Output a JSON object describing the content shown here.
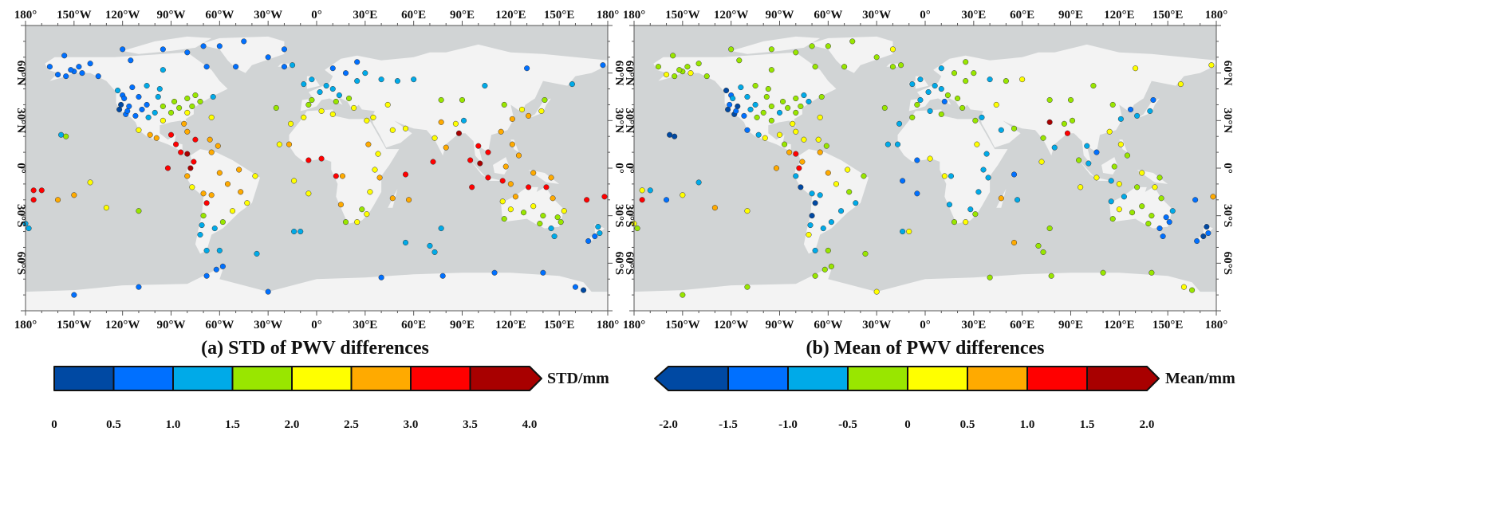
{
  "colors": {
    "ocean": "#d1d4d5",
    "land": "#f3f3f3",
    "bins": [
      "#0049a3",
      "#0070ff",
      "#00aae8",
      "#99e600",
      "#ffff00",
      "#ffaa00",
      "#ff0000",
      "#a80000"
    ]
  },
  "axes": {
    "lon_labels": [
      "180°",
      "150°W",
      "120°W",
      "90°W",
      "60°W",
      "30°W",
      "0°",
      "30°E",
      "60°E",
      "90°E",
      "120°E",
      "150°E",
      "180°"
    ],
    "lat_labels": [
      "60°N",
      "30°N",
      "0°",
      "30°S",
      "60°S"
    ]
  },
  "panels": [
    {
      "title": "(a) STD of PWV differences",
      "variable": "std",
      "colorbar": {
        "ticks": [
          "0",
          "0.5",
          "1.0",
          "1.5",
          "2.0",
          "2.5",
          "3.0",
          "3.5",
          "4.0"
        ],
        "range": [
          0,
          4
        ],
        "unit": "STD/mm",
        "extend": "max"
      }
    },
    {
      "title": "(b) Mean of PWV differences",
      "variable": "mean",
      "colorbar": {
        "ticks": [
          "-2.0",
          "-1.5",
          "-1.0",
          "-0.5",
          "0",
          "0.5",
          "1.0",
          "1.5",
          "2.0"
        ],
        "range": [
          -2,
          2
        ],
        "unit": "Mean/mm",
        "extend": "both"
      }
    }
  ],
  "stations_fields": [
    "lon",
    "lat",
    "std",
    "mean"
  ],
  "stations": [
    [
      -150,
      61,
      0.7,
      -0.3
    ],
    [
      -147,
      64,
      0.6,
      -0.4
    ],
    [
      -135,
      58,
      0.8,
      -0.2
    ],
    [
      -160,
      59,
      0.8,
      0.2
    ],
    [
      -165,
      64,
      0.6,
      -0.3
    ],
    [
      -156,
      71,
      0.6,
      -0.2
    ],
    [
      -140,
      66,
      0.7,
      -0.4
    ],
    [
      -145,
      60,
      0.9,
      0.1
    ],
    [
      -155,
      58,
      0.7,
      -0.5
    ],
    [
      -152,
      62,
      0.6,
      -0.2
    ],
    [
      -123,
      49,
      1.0,
      -1.6
    ],
    [
      -114,
      51,
      0.9,
      -0.6
    ],
    [
      -105,
      52,
      1.2,
      -0.4
    ],
    [
      -97,
      50,
      1.3,
      -0.3
    ],
    [
      -80,
      44,
      1.6,
      -0.3
    ],
    [
      -75,
      46,
      1.5,
      -0.7
    ],
    [
      -64,
      45,
      1.4,
      -0.5
    ],
    [
      -95,
      62,
      1.0,
      -0.2
    ],
    [
      -68,
      64,
      0.7,
      -0.1
    ],
    [
      -80,
      73,
      0.6,
      -0.4
    ],
    [
      -95,
      75,
      0.6,
      -0.3
    ],
    [
      -115,
      68,
      0.7,
      -0.2
    ],
    [
      -120,
      75,
      0.6,
      -0.3
    ],
    [
      -122,
      37,
      0.4,
      -1.8
    ],
    [
      -118,
      34,
      0.5,
      -1.7
    ],
    [
      -112,
      33,
      0.8,
      -1.2
    ],
    [
      -105,
      40,
      0.9,
      -0.6
    ],
    [
      -100,
      35,
      1.2,
      -0.4
    ],
    [
      -95,
      30,
      2.3,
      -0.3
    ],
    [
      -90,
      35,
      1.8,
      -0.6
    ],
    [
      -85,
      38,
      1.7,
      -0.4
    ],
    [
      -80,
      35,
      2.0,
      -0.4
    ],
    [
      -82,
      28,
      2.6,
      0.3
    ],
    [
      -77,
      39,
      1.9,
      -0.5
    ],
    [
      -72,
      42,
      1.6,
      -0.6
    ],
    [
      -120,
      46,
      0.6,
      -1.3
    ],
    [
      -110,
      45,
      0.7,
      -0.7
    ],
    [
      -98,
      45,
      1.3,
      -0.4
    ],
    [
      -88,
      42,
      1.6,
      -0.3
    ],
    [
      -95,
      39,
      1.6,
      -0.2
    ],
    [
      -104,
      32,
      1.1,
      -0.5
    ],
    [
      -116,
      39,
      0.5,
      -1.6
    ],
    [
      -121,
      40,
      0.4,
      -1.2
    ],
    [
      -119,
      44,
      0.6,
      -0.9
    ],
    [
      -117,
      36,
      0.5,
      -1.4
    ],
    [
      -108,
      37,
      0.8,
      -0.6
    ],
    [
      -99,
      19,
      2.7,
      0.2
    ],
    [
      -103,
      21,
      2.8,
      -0.8
    ],
    [
      -90,
      21,
      3.2,
      0.4
    ],
    [
      -87,
      15,
      3.3,
      -0.4
    ],
    [
      -84,
      10,
      3.4,
      0.7
    ],
    [
      -80,
      9,
      3.6,
      1.2
    ],
    [
      -75,
      18,
      3.1,
      0.3
    ],
    [
      -66,
      18,
      2.9,
      0.1
    ],
    [
      -61,
      14,
      2.6,
      -0.4
    ],
    [
      -110,
      24,
      2.3,
      -1.1
    ],
    [
      -80,
      23,
      2.8,
      0.2
    ],
    [
      -155,
      20,
      1.7,
      -1.8
    ],
    [
      -158,
      21,
      1.3,
      -1.9
    ],
    [
      -175,
      -14,
      3.2,
      0.1
    ],
    [
      -170,
      -14,
      3.4,
      -0.6
    ],
    [
      -150,
      -17,
      2.6,
      0.3
    ],
    [
      -140,
      -9,
      2.3,
      -0.9
    ],
    [
      -160,
      -20,
      2.7,
      -1.2
    ],
    [
      -175,
      -20,
      3.2,
      1.2
    ],
    [
      -180,
      -35,
      1.2,
      0.4
    ],
    [
      -130,
      -25,
      2.1,
      0.7
    ],
    [
      -110,
      -27,
      1.9,
      0.2
    ],
    [
      -92,
      0,
      3.2,
      0.7
    ],
    [
      -76,
      4,
      3.1,
      0.6
    ],
    [
      -78,
      0,
      3.5,
      1.2
    ],
    [
      -80,
      -5,
      2.6,
      -1.0
    ],
    [
      -77,
      -12,
      2.2,
      -1.6
    ],
    [
      -70,
      -16,
      2.8,
      -0.9
    ],
    [
      -68,
      -22,
      3.2,
      -1.7
    ],
    [
      -70,
      -30,
      1.5,
      -1.6
    ],
    [
      -71,
      -36,
      1.3,
      -1.0
    ],
    [
      -72,
      -42,
      1.1,
      0.2
    ],
    [
      -68,
      -52,
      1.1,
      -1.0
    ],
    [
      -60,
      -3,
      2.6,
      0.6
    ],
    [
      -48,
      -1,
      2.7,
      0.3
    ],
    [
      -38,
      -5,
      2.4,
      -0.4
    ],
    [
      -47,
      -15,
      2.6,
      -0.3
    ],
    [
      -43,
      -22,
      2.2,
      -0.6
    ],
    [
      -52,
      -27,
      2.0,
      -0.7
    ],
    [
      -58,
      -34,
      1.7,
      -0.6
    ],
    [
      -63,
      -38,
      1.3,
      -0.6
    ],
    [
      -55,
      -10,
      2.7,
      0.4
    ],
    [
      -65,
      -17,
      2.5,
      -0.6
    ],
    [
      -65,
      10,
      2.9,
      0.8
    ],
    [
      -58,
      -62,
      0.7,
      -0.3
    ],
    [
      -62,
      -64,
      0.6,
      -0.4
    ],
    [
      -68,
      -68,
      0.5,
      -0.3
    ],
    [
      -150,
      -80,
      0.5,
      -0.4
    ],
    [
      -110,
      -75,
      0.6,
      -0.3
    ],
    [
      -30,
      -78,
      0.5,
      0.3
    ],
    [
      40,
      -69,
      0.7,
      -0.2
    ],
    [
      78,
      -68,
      0.6,
      -0.2
    ],
    [
      110,
      -66,
      0.7,
      -0.4
    ],
    [
      140,
      -66,
      0.5,
      -0.3
    ],
    [
      165,
      -77,
      0.4,
      -0.3
    ],
    [
      160,
      -75,
      0.5,
      0.2
    ],
    [
      -50,
      64,
      0.6,
      -0.4
    ],
    [
      -30,
      70,
      0.7,
      -0.1
    ],
    [
      -20,
      75,
      0.6,
      0.1
    ],
    [
      -45,
      80,
      0.6,
      -0.2
    ],
    [
      -60,
      77,
      0.7,
      -0.3
    ],
    [
      -70,
      77,
      0.5,
      -0.2
    ],
    [
      -20,
      64,
      0.9,
      -0.3
    ],
    [
      -15,
      65,
      1.0,
      -0.4
    ],
    [
      -5,
      40,
      1.8,
      -0.3
    ],
    [
      -3,
      43,
      1.6,
      -0.6
    ],
    [
      2,
      48,
      1.3,
      -0.7
    ],
    [
      6,
      52,
      1.2,
      -0.8
    ],
    [
      10,
      50,
      1.1,
      -0.6
    ],
    [
      14,
      46,
      1.3,
      -0.3
    ],
    [
      12,
      42,
      1.7,
      -1.1
    ],
    [
      20,
      44,
      1.5,
      -0.3
    ],
    [
      25,
      55,
      1.0,
      -0.4
    ],
    [
      18,
      60,
      0.9,
      -0.5
    ],
    [
      10,
      63,
      0.8,
      -0.6
    ],
    [
      25,
      67,
      0.7,
      -0.3
    ],
    [
      30,
      60,
      1.0,
      -0.5
    ],
    [
      40,
      56,
      1.2,
      -0.6
    ],
    [
      -8,
      53,
      1.4,
      -0.7
    ],
    [
      -3,
      56,
      1.2,
      -0.6
    ],
    [
      23,
      38,
      2.0,
      -0.1
    ],
    [
      35,
      32,
      2.1,
      -1.0
    ],
    [
      44,
      40,
      2.0,
      0.3
    ],
    [
      50,
      55,
      1.1,
      -0.3
    ],
    [
      60,
      56,
      1.2,
      0.4
    ],
    [
      77,
      43,
      1.6,
      -0.5
    ],
    [
      90,
      43,
      1.5,
      -0.3
    ],
    [
      104,
      52,
      1.2,
      -0.4
    ],
    [
      116,
      40,
      1.8,
      -0.5
    ],
    [
      121,
      31,
      2.5,
      -0.7
    ],
    [
      114,
      23,
      2.8,
      0.3
    ],
    [
      127,
      37,
      2.2,
      -1.2
    ],
    [
      139,
      36,
      2.4,
      -0.9
    ],
    [
      141,
      43,
      1.9,
      -1.1
    ],
    [
      131,
      33,
      2.7,
      -0.6
    ],
    [
      158,
      53,
      1.0,
      0.2
    ],
    [
      177,
      65,
      0.8,
      0.1
    ],
    [
      130,
      63,
      0.9,
      0.1
    ],
    [
      77,
      29,
      2.6,
      1.5
    ],
    [
      88,
      22,
      3.6,
      1.2
    ],
    [
      80,
      13,
      2.8,
      -0.9
    ],
    [
      73,
      19,
      2.2,
      -0.3
    ],
    [
      55,
      25,
      2.4,
      -0.1
    ],
    [
      47,
      24,
      2.1,
      -0.6
    ],
    [
      100,
      14,
      3.2,
      -0.9
    ],
    [
      106,
      10,
      3.3,
      -1.3
    ],
    [
      101,
      3,
      3.6,
      -0.7
    ],
    [
      95,
      5,
      3.2,
      -0.4
    ],
    [
      106,
      -6,
      3.3,
      0.2
    ],
    [
      115,
      -8,
      3.2,
      -1.0
    ],
    [
      120,
      -10,
      2.9,
      0.1
    ],
    [
      125,
      8,
      2.7,
      -0.3
    ],
    [
      121,
      15,
      2.8,
      0.2
    ],
    [
      117,
      1,
      2.8,
      -0.2
    ],
    [
      145,
      -6,
      2.8,
      -0.4
    ],
    [
      134,
      -3,
      2.6,
      0.3
    ],
    [
      91,
      30,
      1.3,
      -0.2
    ],
    [
      86,
      28,
      2.2,
      -0.5
    ],
    [
      -17,
      15,
      2.6,
      -0.9
    ],
    [
      -5,
      5,
      3.1,
      -1.2
    ],
    [
      3,
      6,
      3.4,
      0.4
    ],
    [
      -8,
      32,
      2.0,
      -0.3
    ],
    [
      3,
      36,
      2.0,
      -0.6
    ],
    [
      10,
      34,
      2.2,
      -0.4
    ],
    [
      31,
      30,
      2.3,
      -0.4
    ],
    [
      36,
      -1,
      2.4,
      -0.7
    ],
    [
      39,
      -6,
      2.8,
      -1.0
    ],
    [
      33,
      -15,
      2.3,
      -0.6
    ],
    [
      28,
      -26,
      1.9,
      -1.0
    ],
    [
      18,
      -34,
      1.8,
      -0.3
    ],
    [
      25,
      -34,
      2.1,
      0.0
    ],
    [
      31,
      -29,
      2.2,
      -0.4
    ],
    [
      15,
      -23,
      2.6,
      -0.6
    ],
    [
      16,
      -5,
      2.9,
      -0.8
    ],
    [
      47,
      -19,
      2.7,
      0.6
    ],
    [
      57,
      -20,
      2.5,
      -1.0
    ],
    [
      55,
      -4,
      3.0,
      -1.2
    ],
    [
      38,
      9,
      2.2,
      -0.8
    ],
    [
      32,
      15,
      2.5,
      0.2
    ],
    [
      12,
      -5,
      3.2,
      0.3
    ],
    [
      -14,
      -8,
      2.2,
      -1.1
    ],
    [
      -5,
      -16,
      2.4,
      -1.2
    ],
    [
      116,
      -32,
      1.9,
      -0.3
    ],
    [
      115,
      -21,
      2.3,
      -0.7
    ],
    [
      123,
      -18,
      2.8,
      -0.6
    ],
    [
      131,
      -12,
      3.1,
      -0.3
    ],
    [
      134,
      -24,
      2.2,
      -0.2
    ],
    [
      138,
      -35,
      1.6,
      -0.5
    ],
    [
      145,
      -38,
      1.3,
      -1.2
    ],
    [
      151,
      -34,
      1.5,
      -1.1
    ],
    [
      153,
      -27,
      2.1,
      -0.8
    ],
    [
      146,
      -19,
      2.8,
      -0.5
    ],
    [
      142,
      -12,
      3.2,
      0.3
    ],
    [
      147,
      -43,
      1.2,
      -1.4
    ],
    [
      140,
      -30,
      1.9,
      -0.4
    ],
    [
      128,
      -28,
      1.9,
      -0.2
    ],
    [
      149,
      -31,
      1.6,
      -1.3
    ],
    [
      120,
      -26,
      2.0,
      0.4
    ],
    [
      174,
      -37,
      1.2,
      -1.6
    ],
    [
      175,
      -41,
      1.1,
      -1.5
    ],
    [
      172,
      -43,
      0.9,
      -1.7
    ],
    [
      168,
      -46,
      0.8,
      -1.3
    ],
    [
      167,
      -20,
      3.0,
      -1.1
    ],
    [
      178,
      -18,
      3.1,
      0.5
    ],
    [
      -178,
      -38,
      1.2,
      -0.3
    ],
    [
      -25,
      38,
      1.5,
      -0.4
    ],
    [
      -16,
      28,
      2.0,
      -1.0
    ],
    [
      -23,
      15,
      2.4,
      -0.6
    ],
    [
      -14,
      -40,
      1.3,
      -0.7
    ],
    [
      -65,
      32,
      2.2,
      0.1
    ],
    [
      73,
      -53,
      1.2,
      -0.5
    ],
    [
      70,
      -49,
      1.1,
      -0.3
    ],
    [
      77,
      -38,
      1.3,
      -0.5
    ],
    [
      96,
      -12,
      3.1,
      0.2
    ],
    [
      72,
      4,
      3.2,
      0.4
    ],
    [
      55,
      -47,
      1.2,
      0.5
    ],
    [
      -60,
      -52,
      1.1,
      -0.4
    ],
    [
      -37,
      -54,
      1.0,
      -0.3
    ],
    [
      -10,
      -40,
      1.3,
      0.3
    ]
  ]
}
